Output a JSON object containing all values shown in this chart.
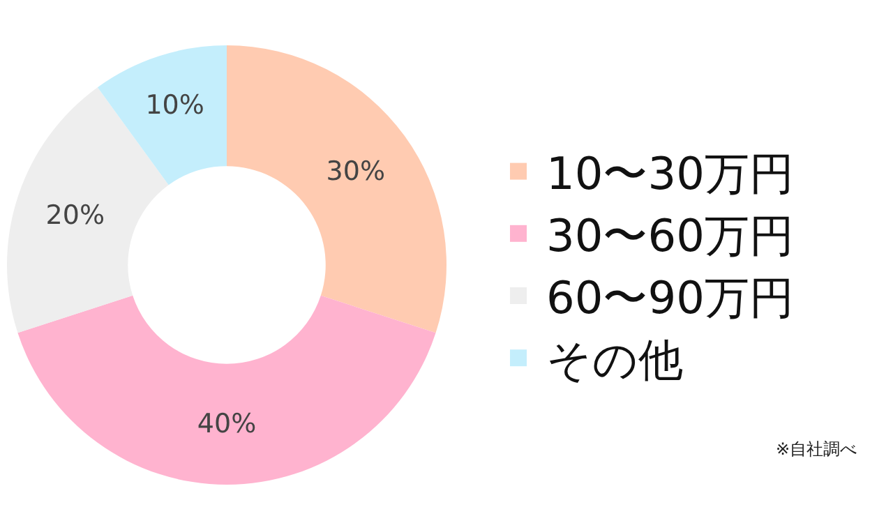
{
  "chart_data": {
    "type": "donut",
    "categories": [
      "10〜30万円",
      "30〜60万円",
      "60〜90万円",
      "その他"
    ],
    "values": [
      30,
      40,
      20,
      10
    ],
    "value_labels": [
      "30%",
      "40%",
      "20%",
      "10%"
    ],
    "colors": [
      "#ffcbb1",
      "#ffb3cf",
      "#eeeeee",
      "#c4eefc"
    ],
    "legend": "right",
    "annotations": [
      "※自社調べ"
    ]
  }
}
